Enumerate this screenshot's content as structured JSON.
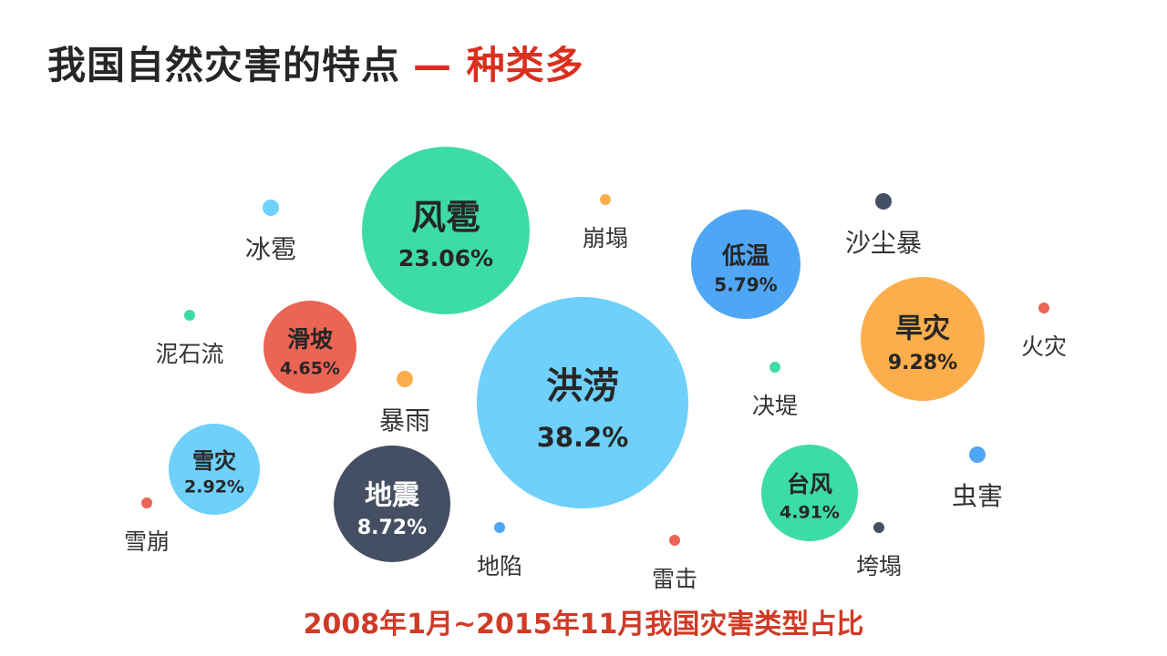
{
  "slide": {
    "title": "我国自然灾害的特点",
    "title_accent": "— 种类多",
    "caption": "2008年1月~2015年11月我国灾害类型占比"
  },
  "colors": {
    "title": "#262626",
    "accent": "#d9301f",
    "caption": "#d03a26",
    "green": "#3ddba8",
    "light_blue": "#6ed0fb",
    "blue": "#4ea6f5",
    "red": "#ec6454",
    "orange": "#fcae4c",
    "navy": "#454f63",
    "label": "#333333"
  },
  "chart_data": {
    "type": "bubble",
    "title": "2008年1月~2015年11月我国灾害类型占比",
    "unit": "%",
    "major": [
      {
        "name": "洪涝",
        "value": 38.2,
        "label": "38.2%",
        "color": "#6ed0fb"
      },
      {
        "name": "风雹",
        "value": 23.06,
        "label": "23.06%",
        "color": "#3ddba8"
      },
      {
        "name": "旱灾",
        "value": 9.28,
        "label": "9.28%",
        "color": "#fcae4c"
      },
      {
        "name": "地震",
        "value": 8.72,
        "label": "8.72%",
        "color": "#454f63"
      },
      {
        "name": "低温",
        "value": 5.79,
        "label": "5.79%",
        "color": "#4ea6f5"
      },
      {
        "name": "台风",
        "value": 4.91,
        "label": "4.91%",
        "color": "#3ddba8"
      },
      {
        "name": "滑坡",
        "value": 4.65,
        "label": "4.65%",
        "color": "#ec6454"
      },
      {
        "name": "雪灾",
        "value": 2.92,
        "label": "2.92%",
        "color": "#6ed0fb"
      }
    ],
    "minor": [
      {
        "name": "冰雹",
        "color": "#6ed0fb"
      },
      {
        "name": "崩塌",
        "color": "#fcae4c"
      },
      {
        "name": "沙尘暴",
        "color": "#454f63"
      },
      {
        "name": "泥石流",
        "color": "#3ddba8"
      },
      {
        "name": "暴雨",
        "color": "#fcae4c"
      },
      {
        "name": "火灾",
        "color": "#ec6454"
      },
      {
        "name": "决堤",
        "color": "#3ddba8"
      },
      {
        "name": "虫害",
        "color": "#4ea6f5"
      },
      {
        "name": "雪崩",
        "color": "#ec6454"
      },
      {
        "name": "地陷",
        "color": "#4ea6f5"
      },
      {
        "name": "雷击",
        "color": "#ec6454"
      },
      {
        "name": "垮塌",
        "color": "#454f63"
      }
    ]
  }
}
